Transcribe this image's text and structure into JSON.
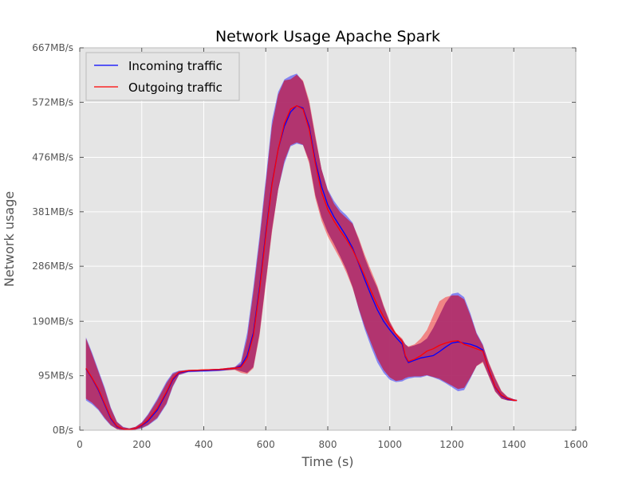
{
  "chart_data": {
    "type": "line",
    "title": "Network Usage Apache Spark",
    "xlabel": "Time (s)",
    "ylabel": "Network usage",
    "xlim": [
      0,
      1600
    ],
    "ylim": [
      0,
      667
    ],
    "xticks": [
      0,
      200,
      400,
      600,
      800,
      1000,
      1200,
      1400,
      1600
    ],
    "xtick_labels": [
      "0",
      "200",
      "400",
      "600",
      "800",
      "1000",
      "1200",
      "1400",
      "1600"
    ],
    "yticks": [
      0,
      95,
      190,
      286,
      381,
      476,
      572,
      667
    ],
    "ytick_labels": [
      "0B/s",
      "95MB/s",
      "190MB/s",
      "286MB/s",
      "381MB/s",
      "476MB/s",
      "572MB/s",
      "667MB/s"
    ],
    "y_unit": "MB/s",
    "grid": true,
    "background_color": "#e5e5e5",
    "legend_position": "top-left",
    "band_color": "#b0306a",
    "series": [
      {
        "name": "Incoming traffic",
        "color": "#0000ff",
        "x": [
          20,
          40,
          60,
          80,
          100,
          120,
          140,
          160,
          180,
          200,
          220,
          250,
          280,
          300,
          320,
          350,
          400,
          450,
          500,
          520,
          540,
          560,
          580,
          600,
          620,
          640,
          660,
          680,
          700,
          720,
          740,
          760,
          780,
          800,
          820,
          840,
          860,
          880,
          900,
          920,
          940,
          960,
          980,
          1000,
          1020,
          1040,
          1050,
          1060,
          1080,
          1100,
          1120,
          1140,
          1160,
          1180,
          1200,
          1220,
          1240,
          1260,
          1280,
          1300,
          1320,
          1340,
          1360,
          1380,
          1400,
          1410
        ],
        "mean": [
          107,
          90,
          70,
          45,
          20,
          6,
          2,
          1,
          3,
          8,
          16,
          35,
          65,
          88,
          100,
          103,
          104,
          105,
          108,
          112,
          130,
          170,
          250,
          345,
          430,
          490,
          530,
          555,
          566,
          562,
          530,
          470,
          425,
          393,
          372,
          355,
          338,
          318,
          290,
          262,
          235,
          210,
          190,
          175,
          162,
          150,
          128,
          118,
          122,
          126,
          128,
          130,
          137,
          145,
          152,
          154,
          152,
          150,
          146,
          140,
          104,
          75,
          60,
          54,
          52,
          52
        ],
        "upper": [
          162,
          135,
          105,
          75,
          40,
          15,
          6,
          3,
          6,
          14,
          28,
          55,
          85,
          100,
          104,
          105,
          106,
          107,
          110,
          120,
          170,
          250,
          340,
          440,
          540,
          590,
          612,
          618,
          622,
          608,
          570,
          510,
          455,
          420,
          400,
          385,
          375,
          362,
          332,
          300,
          272,
          248,
          216,
          188,
          168,
          158,
          150,
          145,
          148,
          152,
          160,
          178,
          200,
          222,
          238,
          240,
          232,
          204,
          170,
          150,
          116,
          90,
          68,
          58,
          54,
          53
        ],
        "lower": [
          52,
          45,
          35,
          20,
          8,
          2,
          0,
          0,
          1,
          3,
          8,
          20,
          45,
          75,
          96,
          101,
          102,
          103,
          106,
          103,
          100,
          110,
          170,
          260,
          350,
          420,
          465,
          495,
          500,
          497,
          470,
          410,
          372,
          345,
          325,
          303,
          280,
          250,
          210,
          175,
          145,
          118,
          100,
          88,
          84,
          85,
          88,
          90,
          92,
          92,
          95,
          92,
          88,
          82,
          75,
          68,
          70,
          90,
          112,
          120,
          94,
          68,
          55,
          52,
          51,
          51
        ]
      },
      {
        "name": "Outgoing traffic",
        "color": "#ff0000",
        "x": [
          20,
          40,
          60,
          80,
          100,
          120,
          140,
          160,
          180,
          200,
          220,
          250,
          280,
          300,
          320,
          350,
          400,
          450,
          500,
          520,
          540,
          560,
          580,
          600,
          620,
          640,
          660,
          680,
          700,
          720,
          740,
          760,
          780,
          800,
          820,
          840,
          860,
          880,
          900,
          920,
          940,
          960,
          980,
          1000,
          1020,
          1040,
          1050,
          1060,
          1080,
          1100,
          1120,
          1140,
          1160,
          1180,
          1200,
          1220,
          1240,
          1260,
          1280,
          1300,
          1320,
          1340,
          1360,
          1380,
          1400,
          1410
        ],
        "mean": [
          108,
          91,
          72,
          47,
          22,
          7,
          2,
          1,
          3,
          9,
          18,
          38,
          67,
          90,
          101,
          104,
          105,
          106,
          108,
          110,
          125,
          165,
          245,
          340,
          428,
          490,
          535,
          560,
          566,
          560,
          525,
          465,
          415,
          385,
          365,
          348,
          333,
          315,
          292,
          268,
          242,
          218,
          198,
          182,
          168,
          155,
          130,
          120,
          124,
          130,
          138,
          142,
          148,
          152,
          155,
          156,
          150,
          146,
          142,
          138,
          105,
          76,
          61,
          55,
          52,
          52
        ],
        "upper": [
          160,
          132,
          102,
          72,
          38,
          14,
          5,
          3,
          6,
          13,
          26,
          52,
          82,
          98,
          103,
          105,
          106,
          107,
          110,
          116,
          160,
          240,
          330,
          430,
          530,
          585,
          610,
          612,
          620,
          610,
          575,
          515,
          455,
          418,
          395,
          380,
          370,
          360,
          335,
          305,
          278,
          252,
          218,
          190,
          170,
          160,
          150,
          146,
          150,
          160,
          175,
          200,
          225,
          232,
          235,
          235,
          228,
          200,
          168,
          148,
          118,
          92,
          69,
          58,
          54,
          53
        ],
        "lower": [
          55,
          48,
          37,
          22,
          9,
          2,
          0,
          0,
          1,
          4,
          9,
          22,
          47,
          77,
          97,
          102,
          103,
          104,
          105,
          100,
          98,
          108,
          165,
          255,
          345,
          420,
          470,
          497,
          502,
          498,
          465,
          405,
          365,
          338,
          318,
          298,
          275,
          248,
          212,
          180,
          152,
          125,
          105,
          92,
          86,
          88,
          91,
          93,
          94,
          94,
          96,
          93,
          90,
          84,
          78,
          72,
          74,
          92,
          112,
          118,
          93,
          67,
          55,
          52,
          51,
          51
        ]
      }
    ]
  }
}
